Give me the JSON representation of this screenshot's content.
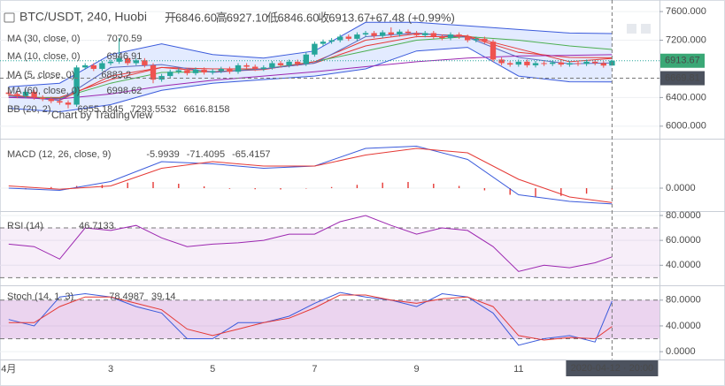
{
  "chart_data": [
    {
      "type": "candlestick",
      "title": "BTC/USDT, 240, Huobi",
      "stats": [
        {
          "name": "开",
          "label": "6846.60"
        },
        {
          "name": "高",
          "label": "6927.10"
        },
        {
          "name": "低",
          "label": "6846.60"
        },
        {
          "name": "收",
          "label": "6913.67"
        },
        {
          "label": "+67.48 (+0.99%)"
        }
      ],
      "watermark": "Chart by TradingView",
      "categories": [
        "4月",
        null,
        null,
        null,
        null,
        null,
        null,
        null,
        null,
        null,
        null,
        null,
        "3",
        null,
        null,
        null,
        null,
        null,
        null,
        null,
        null,
        null,
        null,
        null,
        "5",
        null,
        null,
        null,
        null,
        null,
        null,
        null,
        null,
        null,
        null,
        null,
        "7",
        null,
        null,
        null,
        null,
        null,
        null,
        null,
        null,
        null,
        null,
        null,
        "9",
        null,
        null,
        null,
        null,
        null,
        null,
        null,
        null,
        null,
        null,
        null,
        "11",
        null,
        null,
        null,
        null,
        null,
        null,
        null,
        null,
        null,
        null,
        null
      ],
      "open": [
        6470,
        6450,
        6420,
        6480,
        6400,
        6380,
        6350,
        6330,
        6300,
        6820,
        6850,
        6800,
        6880,
        6900,
        6950,
        6880,
        6920,
        6850,
        6650,
        6700,
        6760,
        6780,
        6740,
        6790,
        6750,
        6770,
        6800,
        6760,
        6850,
        6830,
        6800,
        6820,
        6880,
        6850,
        6900,
        6870,
        7000,
        7150,
        7180,
        7200,
        7250,
        7220,
        7280,
        7300,
        7260,
        7310,
        7280,
        7320,
        7300,
        7270,
        7300,
        7250,
        7230,
        7280,
        7250,
        7200,
        7220,
        7180,
        6930,
        6880,
        6860,
        6900,
        6850,
        6880,
        6870,
        6890,
        6860,
        6880,
        6870,
        6900,
        6880,
        6846.6
      ],
      "high": [
        6500,
        6480,
        6510,
        6510,
        6430,
        6410,
        6380,
        6360,
        6850,
        6880,
        6880,
        6910,
        6930,
        7230,
        6980,
        6950,
        6950,
        6880,
        6730,
        6790,
        6810,
        6810,
        6820,
        6820,
        6800,
        6830,
        6830,
        6880,
        6880,
        6860,
        6850,
        6910,
        6910,
        6930,
        6930,
        7030,
        7180,
        7210,
        7230,
        7280,
        7280,
        7310,
        7330,
        7330,
        7340,
        7380,
        7350,
        7350,
        7330,
        7330,
        7330,
        7280,
        7310,
        7310,
        7280,
        7250,
        7250,
        7210,
        6960,
        6910,
        6930,
        6930,
        6910,
        6910,
        6920,
        6920,
        6910,
        6910,
        6930,
        6930,
        6910,
        6927.1
      ],
      "low": [
        6420,
        6390,
        6390,
        6370,
        6350,
        6320,
        6300,
        6250,
        6270,
        6790,
        6770,
        6770,
        6850,
        6870,
        6850,
        6850,
        6820,
        6600,
        6620,
        6670,
        6730,
        6710,
        6710,
        6720,
        6720,
        6740,
        6730,
        6730,
        6800,
        6770,
        6770,
        6790,
        6820,
        6820,
        6840,
        6840,
        6970,
        7120,
        7150,
        7170,
        7190,
        7190,
        7250,
        7230,
        7230,
        7250,
        7250,
        7270,
        7240,
        7240,
        7220,
        7200,
        7200,
        7220,
        7170,
        7170,
        7150,
        6900,
        6850,
        6830,
        6830,
        6820,
        6820,
        6840,
        6840,
        6830,
        6830,
        6840,
        6840,
        6850,
        6816,
        6846.6
      ],
      "close": [
        6450,
        6420,
        6480,
        6400,
        6380,
        6350,
        6330,
        6300,
        6820,
        6850,
        6800,
        6880,
        6900,
        6950,
        6880,
        6920,
        6850,
        6650,
        6700,
        6760,
        6780,
        6740,
        6790,
        6750,
        6770,
        6800,
        6760,
        6850,
        6830,
        6800,
        6820,
        6880,
        6850,
        6900,
        6870,
        7000,
        7150,
        7180,
        7200,
        7250,
        7220,
        7280,
        7300,
        7260,
        7310,
        7280,
        7320,
        7300,
        7270,
        7300,
        7250,
        7230,
        7280,
        7250,
        7200,
        7220,
        7180,
        6930,
        6880,
        6860,
        6900,
        6850,
        6880,
        6870,
        6890,
        6860,
        6880,
        6870,
        6900,
        6880,
        6846.19,
        6913.67
      ],
      "up_color": "#26a69a",
      "down_color": "#ef5350",
      "series": [
        {
          "name": "MA (30, close, 0)",
          "color": "#4caf50",
          "x": [
            0,
            6,
            12,
            18,
            24,
            30,
            36,
            42,
            48,
            54,
            60,
            66,
            71
          ],
          "values": [
            6420,
            6390,
            6600,
            6750,
            6760,
            6800,
            6900,
            7050,
            7200,
            7250,
            7200,
            7120,
            7070.59
          ]
        },
        {
          "name": "MA (10, close, 0)",
          "color": "#e53935",
          "x": [
            0,
            6,
            12,
            18,
            24,
            30,
            36,
            42,
            48,
            54,
            60,
            66,
            71
          ],
          "values": [
            6440,
            6360,
            6700,
            6820,
            6760,
            6790,
            6900,
            7200,
            7290,
            7260,
            7080,
            6900,
            6946.91
          ]
        },
        {
          "name": "MA (5, close, 0)",
          "color": "#5c6bc0",
          "x": [
            0,
            6,
            12,
            18,
            24,
            30,
            36,
            42,
            48,
            54,
            60,
            66,
            71
          ],
          "values": [
            6420,
            6360,
            6820,
            6860,
            6750,
            6800,
            6880,
            7250,
            7300,
            7240,
            6960,
            6870,
            6883.2
          ]
        },
        {
          "name": "MA (60, close, 0)",
          "color": "#9c27b0",
          "x": [
            0,
            6,
            12,
            18,
            24,
            30,
            36,
            42,
            48,
            54,
            60,
            66,
            71
          ],
          "values": [
            6400,
            6380,
            6450,
            6560,
            6640,
            6700,
            6760,
            6830,
            6900,
            6950,
            6980,
            6990,
            6998.62
          ]
        }
      ],
      "bollinger": {
        "name": "BB (20, 2)",
        "x": [
          0,
          6,
          12,
          18,
          24,
          30,
          36,
          42,
          48,
          54,
          60,
          66,
          71
        ],
        "basis": [
          6400,
          6400,
          6650,
          6820,
          6800,
          6800,
          6880,
          7120,
          7250,
          7250,
          7030,
          6960,
          6955.1845
        ],
        "upper": [
          6550,
          6600,
          7000,
          7150,
          7000,
          6950,
          7050,
          7450,
          7450,
          7400,
          7350,
          7300,
          7293.5532
        ],
        "lower": [
          6250,
          6200,
          6300,
          6500,
          6600,
          6650,
          6700,
          6800,
          7050,
          7100,
          6700,
          6620,
          6616.8158
        ],
        "basis_color": "#e53935",
        "color": "#3b5bdb",
        "fill": "rgba(41,98,255,0.13)"
      },
      "ylim": [
        5850,
        7700
      ],
      "yticks": [
        {
          "value": 6000,
          "label": "6000.000"
        },
        {
          "value": 6400,
          "label": "6400.000"
        },
        {
          "value": 7200,
          "label": "7200.000"
        },
        {
          "value": 7600,
          "label": "7600.000"
        }
      ],
      "crosshair": {
        "price": 6669.81,
        "x": 71,
        "time_label": "2020-04-12 · 20:00"
      }
    },
    {
      "type": "macd",
      "legend_title": "MACD (12, 26, close, 9)",
      "histogram": {
        "color": "#e53935",
        "x": [
          2,
          5,
          8,
          11,
          14,
          17,
          20,
          23,
          26,
          29,
          32,
          35,
          38,
          41,
          44,
          47,
          50,
          53,
          56,
          59,
          62,
          65,
          68,
          71
        ],
        "values": [
          -5,
          5,
          10,
          15,
          25,
          28,
          20,
          8,
          -3,
          -5,
          -6,
          -2,
          5,
          15,
          25,
          28,
          20,
          10,
          -10,
          -30,
          -40,
          -35,
          -25,
          -5.9939
        ]
      },
      "series": [
        {
          "color": "#3b5bdb",
          "x": [
            0,
            6,
            12,
            18,
            24,
            30,
            36,
            42,
            48,
            54,
            60,
            66,
            71
          ],
          "values": [
            0,
            -10,
            30,
            120,
            110,
            90,
            100,
            180,
            190,
            130,
            -30,
            -60,
            -71.4095
          ]
        },
        {
          "color": "#e53935",
          "x": [
            0,
            6,
            12,
            18,
            24,
            30,
            36,
            42,
            48,
            54,
            60,
            66,
            71
          ],
          "values": [
            10,
            -5,
            10,
            90,
            120,
            100,
            100,
            150,
            180,
            160,
            40,
            -40,
            -65.4157
          ]
        }
      ],
      "ylim": [
        -100,
        212
      ],
      "yticks": [
        {
          "value": 0,
          "label": "0.0000"
        }
      ]
    },
    {
      "type": "rsi",
      "legend_title": "RSI (14)",
      "band": [
        30,
        70
      ],
      "band_color": "rgba(156,39,176,0.08)",
      "series": [
        {
          "color": "#9c27b0",
          "x": [
            0,
            3,
            6,
            9,
            12,
            15,
            18,
            21,
            24,
            27,
            30,
            33,
            36,
            39,
            42,
            45,
            48,
            51,
            54,
            57,
            60,
            63,
            66,
            69,
            71
          ],
          "values": [
            57,
            55,
            45,
            70,
            68,
            72,
            62,
            55,
            57,
            58,
            60,
            65,
            65,
            75,
            80,
            72,
            65,
            70,
            68,
            55,
            35,
            40,
            38,
            42,
            46.7133
          ]
        }
      ],
      "ylim": [
        24.6,
        82.1
      ],
      "yticks": [
        {
          "value": 40,
          "label": "40.0000"
        },
        {
          "value": 60,
          "label": "60.0000"
        },
        {
          "value": 80,
          "label": "80.0000"
        }
      ]
    },
    {
      "type": "stoch",
      "legend_title": "Stoch (14, 1, 3)",
      "band": [
        20,
        80
      ],
      "band_color": "rgba(156,39,176,0.2)",
      "series": [
        {
          "color": "#3b5bdb",
          "x": [
            0,
            3,
            6,
            9,
            12,
            15,
            18,
            21,
            24,
            27,
            30,
            33,
            36,
            39,
            42,
            45,
            48,
            51,
            54,
            57,
            60,
            63,
            66,
            69,
            71
          ],
          "values": [
            50,
            40,
            85,
            90,
            85,
            70,
            60,
            20,
            20,
            45,
            45,
            55,
            75,
            92,
            85,
            80,
            70,
            90,
            85,
            60,
            10,
            20,
            25,
            15,
            78.4987
          ]
        },
        {
          "color": "#e53935",
          "x": [
            0,
            3,
            6,
            9,
            12,
            15,
            18,
            21,
            24,
            27,
            30,
            33,
            36,
            39,
            42,
            45,
            48,
            51,
            54,
            57,
            60,
            63,
            66,
            69,
            71
          ],
          "values": [
            45,
            45,
            70,
            85,
            85,
            75,
            65,
            35,
            25,
            35,
            45,
            52,
            68,
            88,
            88,
            80,
            75,
            82,
            85,
            70,
            25,
            18,
            22,
            20,
            39.14
          ]
        }
      ],
      "ylim": [
        -10.8,
        100.3
      ],
      "yticks": [
        {
          "value": 0,
          "label": "0.0000"
        },
        {
          "value": 40,
          "label": "40.0000"
        },
        {
          "value": 80,
          "label": "80.0000"
        }
      ]
    }
  ]
}
